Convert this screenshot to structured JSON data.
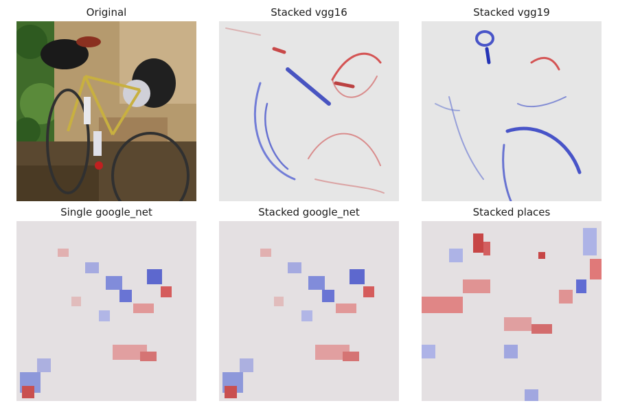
{
  "figure": {
    "panels": [
      {
        "title": "Original",
        "kind": "photo",
        "subject": "bicycle leaning against wall"
      },
      {
        "title": "Stacked vgg16",
        "kind": "saliency-heatmap",
        "colormap": "seismic"
      },
      {
        "title": "Stacked vgg19",
        "kind": "saliency-heatmap",
        "colormap": "seismic"
      },
      {
        "title": "Single google_net",
        "kind": "saliency-heatmap",
        "colormap": "seismic"
      },
      {
        "title": "Stacked google_net",
        "kind": "saliency-heatmap",
        "colormap": "seismic"
      },
      {
        "title": "Stacked places",
        "kind": "saliency-heatmap",
        "colormap": "seismic"
      }
    ],
    "colors": {
      "positive": "#d7191c",
      "negative": "#1a1ad0",
      "neutral": "#dcdcdc"
    }
  }
}
